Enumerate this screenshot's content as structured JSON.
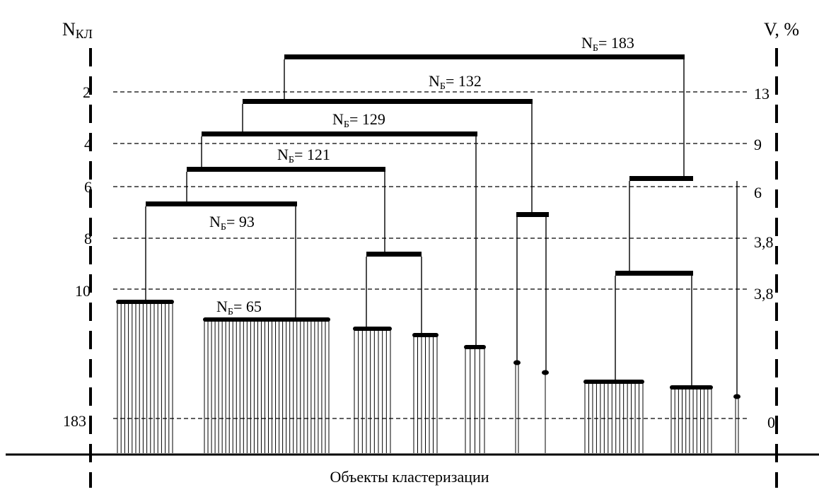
{
  "left_axis": {
    "title_main": "N",
    "title_sub": "КЛ",
    "ticks": [
      "2",
      "4",
      "6",
      "8",
      "10",
      "183"
    ]
  },
  "right_axis": {
    "title": "V, %",
    "ticks": [
      "13",
      "9",
      "6",
      "3,8",
      "3,8",
      "0"
    ]
  },
  "x_axis_label": "Объекты кластеризации",
  "nodes": [
    {
      "main": "N",
      "sub": "Б",
      "value": "= 183"
    },
    {
      "main": "N",
      "sub": "Б",
      "value": "= 132"
    },
    {
      "main": "N",
      "sub": "Б",
      "value": "= 129"
    },
    {
      "main": "N",
      "sub": "Б",
      "value": "= 121"
    },
    {
      "main": "N",
      "sub": "Б",
      "value": "= 93"
    },
    {
      "main": "N",
      "sub": "Б",
      "value": "= 65"
    }
  ]
}
